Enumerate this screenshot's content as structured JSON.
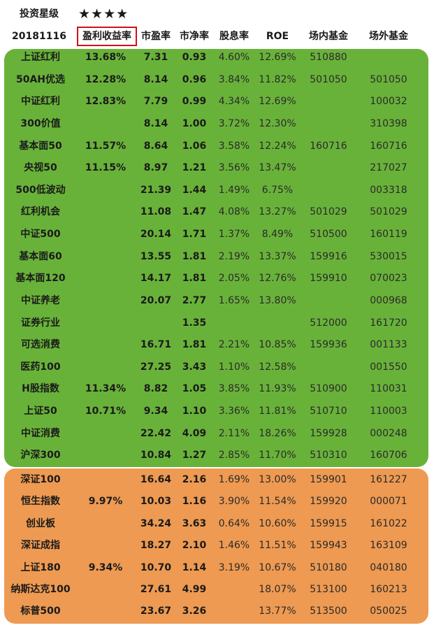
{
  "rating_label": "投资星级",
  "rating_stars": "★★★★",
  "headers": [
    "20181116",
    "盈利收益率",
    "市盈率",
    "市净率",
    "股息率",
    "ROE",
    "场内基金",
    "场外基金"
  ],
  "colors": {
    "green_band": "#69b23a",
    "orange_band": "#ee9a52",
    "highlight_border": "#d0101a"
  },
  "green_rows": [
    [
      "上证红利",
      "13.68%",
      "7.31",
      "0.93",
      "4.60%",
      "12.69%",
      "510880",
      ""
    ],
    [
      "50AH优选",
      "12.28%",
      "8.14",
      "0.96",
      "3.84%",
      "11.82%",
      "501050",
      "501050"
    ],
    [
      "中证红利",
      "12.83%",
      "7.79",
      "0.99",
      "4.34%",
      "12.69%",
      "",
      "100032"
    ],
    [
      "300价值",
      "",
      "8.14",
      "1.00",
      "3.72%",
      "12.30%",
      "",
      "310398"
    ],
    [
      "基本面50",
      "11.57%",
      "8.64",
      "1.06",
      "3.58%",
      "12.24%",
      "160716",
      "160716"
    ],
    [
      "央视50",
      "11.15%",
      "8.97",
      "1.21",
      "3.56%",
      "13.47%",
      "",
      "217027"
    ],
    [
      "500低波动",
      "",
      "21.39",
      "1.44",
      "1.49%",
      "6.75%",
      "",
      "003318"
    ],
    [
      "红利机会",
      "",
      "11.08",
      "1.47",
      "4.08%",
      "13.27%",
      "501029",
      "501029"
    ],
    [
      "中证500",
      "",
      "20.14",
      "1.71",
      "1.37%",
      "8.49%",
      "510500",
      "160119"
    ],
    [
      "基本面60",
      "",
      "13.55",
      "1.81",
      "2.19%",
      "13.37%",
      "159916",
      "530015"
    ],
    [
      "基本面120",
      "",
      "14.17",
      "1.81",
      "2.05%",
      "12.76%",
      "159910",
      "070023"
    ],
    [
      "中证养老",
      "",
      "20.07",
      "2.77",
      "1.65%",
      "13.80%",
      "",
      "000968"
    ],
    [
      "证券行业",
      "",
      "",
      "1.35",
      "",
      "",
      "512000",
      "161720"
    ],
    [
      "可选消费",
      "",
      "16.71",
      "1.81",
      "2.21%",
      "10.85%",
      "159936",
      "001133"
    ],
    [
      "医药100",
      "",
      "27.25",
      "3.43",
      "1.10%",
      "12.58%",
      "",
      "001550"
    ],
    [
      "H股指数",
      "11.34%",
      "8.82",
      "1.05",
      "3.85%",
      "11.93%",
      "510900",
      "110031"
    ],
    [
      "上证50",
      "10.71%",
      "9.34",
      "1.10",
      "3.36%",
      "11.81%",
      "510710",
      "110003"
    ],
    [
      "中证消费",
      "",
      "22.42",
      "4.09",
      "2.11%",
      "18.26%",
      "159928",
      "000248"
    ],
    [
      "沪深300",
      "",
      "10.84",
      "1.27",
      "2.85%",
      "11.70%",
      "510310",
      "160706"
    ]
  ],
  "orange_rows": [
    [
      "深证100",
      "",
      "16.64",
      "2.16",
      "1.69%",
      "13.00%",
      "159901",
      "161227"
    ],
    [
      "恒生指数",
      "9.97%",
      "10.03",
      "1.16",
      "3.90%",
      "11.54%",
      "159920",
      "000071"
    ],
    [
      "创业板",
      "",
      "34.24",
      "3.63",
      "0.64%",
      "10.60%",
      "159915",
      "161022"
    ],
    [
      "深证成指",
      "",
      "18.27",
      "2.10",
      "1.46%",
      "11.51%",
      "159943",
      "163109"
    ],
    [
      "上证180",
      "9.34%",
      "10.70",
      "1.14",
      "3.19%",
      "10.67%",
      "510180",
      "040180"
    ],
    [
      "纳斯达克100",
      "",
      "27.61",
      "4.99",
      "",
      "18.07%",
      "513100",
      "160213"
    ],
    [
      "标普500",
      "",
      "23.67",
      "3.26",
      "",
      "13.77%",
      "513500",
      "050025"
    ]
  ]
}
